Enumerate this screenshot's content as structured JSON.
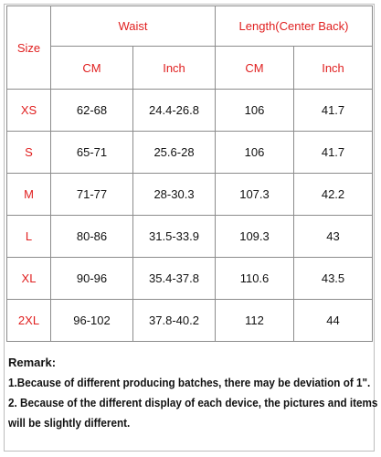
{
  "table": {
    "size_header": "Size",
    "waist_header": "Waist",
    "length_header": "Length(Center Back)",
    "units": [
      "CM",
      "Inch",
      "CM",
      "Inch"
    ],
    "rows": [
      {
        "size": "XS",
        "waist_cm": "62-68",
        "waist_inch": "24.4-26.8",
        "length_cm": "106",
        "length_inch": "41.7"
      },
      {
        "size": "S",
        "waist_cm": "65-71",
        "waist_inch": "25.6-28",
        "length_cm": "106",
        "length_inch": "41.7"
      },
      {
        "size": "M",
        "waist_cm": "71-77",
        "waist_inch": "28-30.3",
        "length_cm": "107.3",
        "length_inch": "42.2"
      },
      {
        "size": "L",
        "waist_cm": "80-86",
        "waist_inch": "31.5-33.9",
        "length_cm": "109.3",
        "length_inch": "43"
      },
      {
        "size": "XL",
        "waist_cm": "90-96",
        "waist_inch": "35.4-37.8",
        "length_cm": "110.6",
        "length_inch": "43.5"
      },
      {
        "size": "2XL",
        "waist_cm": "96-102",
        "waist_inch": "37.8-40.2",
        "length_cm": "112",
        "length_inch": "44"
      }
    ]
  },
  "remark": {
    "title": "Remark:",
    "line1": "1.Because of different producing batches, there may be deviation of 1\".",
    "line2": "2. Because of the different display of each device, the pictures and items",
    "line3": "will be slightly different."
  },
  "colors": {
    "accent": "#e02020",
    "border": "#8c8c8c"
  }
}
